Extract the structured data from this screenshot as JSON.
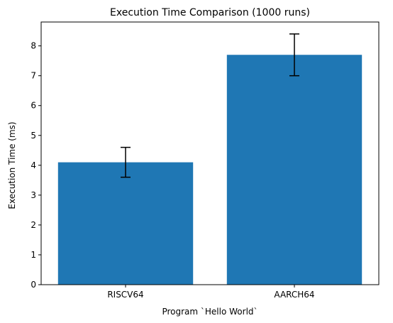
{
  "chart_data": {
    "type": "bar",
    "title": "Execution Time Comparison (1000 runs)",
    "xlabel": "Program `Hello World`",
    "ylabel": "Execution Time (ms)",
    "categories": [
      "RISCV64",
      "AARCH64"
    ],
    "values": [
      4.1,
      7.7
    ],
    "error_low": [
      3.6,
      7.0
    ],
    "error_high": [
      4.6,
      8.4
    ],
    "ylim": [
      0,
      8.8
    ],
    "yticks": [
      0,
      1,
      2,
      3,
      4,
      5,
      6,
      7,
      8
    ],
    "grid": false,
    "legend": "none",
    "bar_color": "#1f77b4",
    "error_color": "#000000"
  }
}
